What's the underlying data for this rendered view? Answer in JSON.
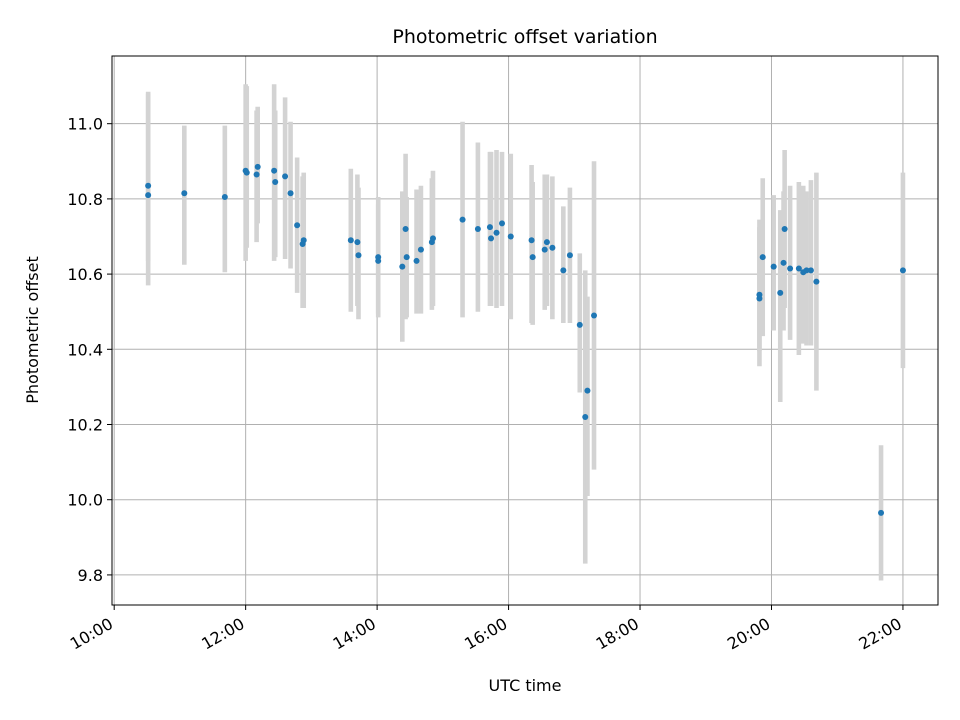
{
  "chart_data": {
    "type": "scatter",
    "title": "Photometric offset variation",
    "xlabel": "UTC time",
    "ylabel": "Photometric offset",
    "xlim": [
      "09:58",
      "22:32"
    ],
    "ylim": [
      9.72,
      11.18
    ],
    "grid": true,
    "x_ticks": [
      "10:00",
      "12:00",
      "14:00",
      "16:00",
      "18:00",
      "20:00",
      "22:00"
    ],
    "y_ticks": [
      "9.8",
      "10.0",
      "10.2",
      "10.4",
      "10.6",
      "10.8",
      "11.0"
    ],
    "colors": {
      "point": "#1f77b4",
      "errorbar": "#d3d3d3",
      "grid": "#b0b0b0"
    },
    "series": [
      {
        "x": [
          "10:31",
          "10:31",
          "11:04",
          "11:41",
          "12:00",
          "12:01",
          "12:10",
          "12:11",
          "12:26",
          "12:27",
          "12:36",
          "12:41",
          "12:47",
          "12:52",
          "12:53",
          "13:36",
          "13:42",
          "13:43",
          "14:01",
          "14:01",
          "14:23",
          "14:26",
          "14:27",
          "14:36",
          "14:40",
          "14:50",
          "14:51",
          "15:18",
          "15:32",
          "15:43",
          "15:44",
          "15:49",
          "15:54",
          "16:02",
          "16:21",
          "16:22",
          "16:33",
          "16:35",
          "16:40",
          "16:50",
          "16:56",
          "17:05",
          "17:10",
          "17:12",
          "17:18"
        ],
        "y": [
          10.81,
          10.835,
          10.815,
          10.805,
          10.875,
          10.87,
          10.865,
          10.885,
          10.875,
          10.845,
          10.86,
          10.815,
          10.73,
          10.68,
          10.69,
          10.69,
          10.685,
          10.65,
          10.635,
          10.645,
          10.62,
          10.72,
          10.645,
          10.635,
          10.665,
          10.685,
          10.695,
          10.745,
          10.72,
          10.725,
          10.695,
          10.71,
          10.735,
          10.7,
          10.69,
          10.645,
          10.665,
          10.685,
          10.67,
          10.61,
          10.65,
          10.465,
          10.22,
          10.29,
          10.49
        ],
        "yerr_low": [
          0.24,
          0.2,
          0.19,
          0.2,
          0.24,
          0.2,
          0.18,
          0.15,
          0.24,
          0.2,
          0.22,
          0.2,
          0.18,
          0.17,
          0.18,
          0.19,
          0.17,
          0.17,
          0.14,
          0.16,
          0.2,
          0.24,
          0.16,
          0.14,
          0.17,
          0.18,
          0.18,
          0.26,
          0.22,
          0.21,
          0.18,
          0.2,
          0.22,
          0.22,
          0.22,
          0.18,
          0.16,
          0.17,
          0.19,
          0.14,
          0.18,
          0.18,
          0.39,
          0.28,
          0.41
        ],
        "yerr_high": [
          0.27,
          0.25,
          0.18,
          0.19,
          0.23,
          0.23,
          0.17,
          0.16,
          0.23,
          0.19,
          0.21,
          0.19,
          0.18,
          0.18,
          0.18,
          0.19,
          0.18,
          0.18,
          0.15,
          0.16,
          0.2,
          0.2,
          0.16,
          0.19,
          0.17,
          0.17,
          0.18,
          0.26,
          0.23,
          0.2,
          0.23,
          0.22,
          0.19,
          0.22,
          0.2,
          0.2,
          0.2,
          0.18,
          0.19,
          0.17,
          0.18,
          0.19,
          0.39,
          0.25,
          0.41
        ]
      },
      {
        "x": [
          "19:49",
          "19:49",
          "19:52",
          "20:02",
          "20:08",
          "20:11",
          "20:12",
          "20:17",
          "20:25",
          "20:29",
          "20:32",
          "20:36",
          "20:41",
          "21:40",
          "22:00"
        ],
        "y": [
          10.535,
          10.545,
          10.645,
          10.62,
          10.55,
          10.63,
          10.72,
          10.615,
          10.615,
          10.605,
          10.61,
          10.61,
          10.58,
          9.965,
          10.61
        ],
        "yerr_low": [
          0.18,
          0.15,
          0.21,
          0.17,
          0.29,
          0.18,
          0.21,
          0.19,
          0.23,
          0.19,
          0.2,
          0.2,
          0.29,
          0.18,
          0.26
        ],
        "yerr_high": [
          0.19,
          0.2,
          0.21,
          0.19,
          0.22,
          0.19,
          0.21,
          0.22,
          0.23,
          0.23,
          0.21,
          0.24,
          0.29,
          0.18,
          0.26
        ]
      }
    ]
  }
}
